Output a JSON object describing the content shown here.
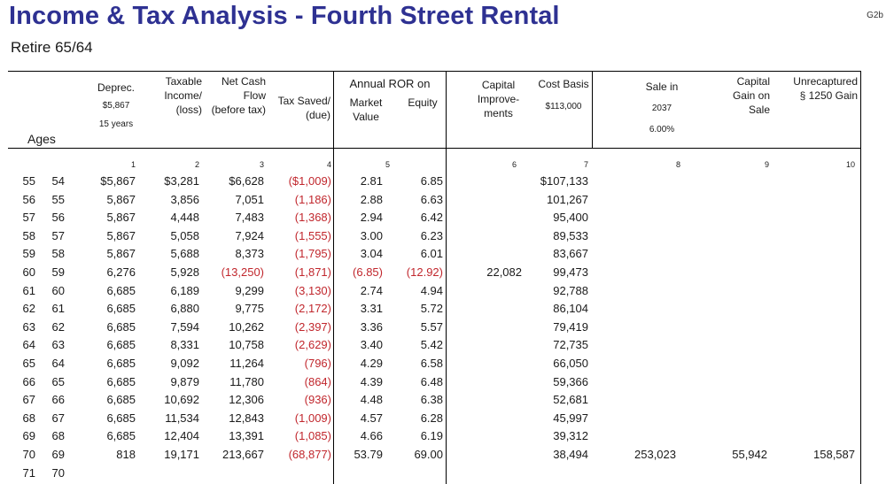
{
  "page": {
    "title": "Income & Tax Analysis - Fourth Street Rental",
    "subtitle": "Retire 65/64",
    "page_id": "G2b"
  },
  "headers": {
    "ages": "Ages",
    "deprec": "Deprec.",
    "deprec_amount": "$5,867",
    "deprec_years": "15 years",
    "taxable_l1": "Taxable",
    "taxable_l2": "Income/",
    "taxable_l3": "(loss)",
    "netcash_l1": "Net Cash",
    "netcash_l2": "Flow",
    "netcash_l3": "(before tax)",
    "taxsaved_l1": "Tax Saved/",
    "taxsaved_l2": "(due)",
    "ror_title": "Annual ROR on",
    "market_l1": "Market",
    "market_l2": "Value",
    "equity": "Equity",
    "capimp_l1": "Capital",
    "capimp_l2": "Improve-",
    "capimp_l3": "ments",
    "costbasis": "Cost Basis",
    "costbasis_amount": "$113,000",
    "sale_l1": "Sale in",
    "sale_year": "2037",
    "sale_rate": "6.00%",
    "capgain_l1": "Capital",
    "capgain_l2": "Gain on",
    "capgain_l3": "Sale",
    "unrecap_l1": "Unrecaptured",
    "unrecap_l2": "§ 1250 Gain"
  },
  "col_numbers": [
    "1",
    "2",
    "3",
    "4",
    "5",
    "6",
    "7",
    "8",
    "9",
    "10"
  ],
  "rows": [
    {
      "age1": "55",
      "age2": "54",
      "deprec": "$5,867",
      "taxable": "$3,281",
      "netcash": "$6,628",
      "taxsaved": "($1,009)",
      "market": "2.81",
      "equity": "6.85",
      "capimp": "",
      "costbasis": "$107,133",
      "sale": "",
      "capgain": "",
      "unrecap": ""
    },
    {
      "age1": "56",
      "age2": "55",
      "deprec": "5,867",
      "taxable": "3,856",
      "netcash": "7,051",
      "taxsaved": "(1,186)",
      "market": "2.88",
      "equity": "6.63",
      "capimp": "",
      "costbasis": "101,267",
      "sale": "",
      "capgain": "",
      "unrecap": ""
    },
    {
      "age1": "57",
      "age2": "56",
      "deprec": "5,867",
      "taxable": "4,448",
      "netcash": "7,483",
      "taxsaved": "(1,368)",
      "market": "2.94",
      "equity": "6.42",
      "capimp": "",
      "costbasis": "95,400",
      "sale": "",
      "capgain": "",
      "unrecap": ""
    },
    {
      "age1": "58",
      "age2": "57",
      "deprec": "5,867",
      "taxable": "5,058",
      "netcash": "7,924",
      "taxsaved": "(1,555)",
      "market": "3.00",
      "equity": "6.23",
      "capimp": "",
      "costbasis": "89,533",
      "sale": "",
      "capgain": "",
      "unrecap": ""
    },
    {
      "age1": "59",
      "age2": "58",
      "deprec": "5,867",
      "taxable": "5,688",
      "netcash": "8,373",
      "taxsaved": "(1,795)",
      "market": "3.04",
      "equity": "6.01",
      "capimp": "",
      "costbasis": "83,667",
      "sale": "",
      "capgain": "",
      "unrecap": ""
    },
    {
      "age1": "60",
      "age2": "59",
      "deprec": "6,276",
      "taxable": "5,928",
      "netcash": "(13,250)",
      "taxsaved": "(1,871)",
      "market": "(6.85)",
      "equity": "(12.92)",
      "capimp": "22,082",
      "costbasis": "99,473",
      "sale": "",
      "capgain": "",
      "unrecap": ""
    },
    {
      "age1": "61",
      "age2": "60",
      "deprec": "6,685",
      "taxable": "6,189",
      "netcash": "9,299",
      "taxsaved": "(3,130)",
      "market": "2.74",
      "equity": "4.94",
      "capimp": "",
      "costbasis": "92,788",
      "sale": "",
      "capgain": "",
      "unrecap": ""
    },
    {
      "age1": "62",
      "age2": "61",
      "deprec": "6,685",
      "taxable": "6,880",
      "netcash": "9,775",
      "taxsaved": "(2,172)",
      "market": "3.31",
      "equity": "5.72",
      "capimp": "",
      "costbasis": "86,104",
      "sale": "",
      "capgain": "",
      "unrecap": ""
    },
    {
      "age1": "63",
      "age2": "62",
      "deprec": "6,685",
      "taxable": "7,594",
      "netcash": "10,262",
      "taxsaved": "(2,397)",
      "market": "3.36",
      "equity": "5.57",
      "capimp": "",
      "costbasis": "79,419",
      "sale": "",
      "capgain": "",
      "unrecap": ""
    },
    {
      "age1": "64",
      "age2": "63",
      "deprec": "6,685",
      "taxable": "8,331",
      "netcash": "10,758",
      "taxsaved": "(2,629)",
      "market": "3.40",
      "equity": "5.42",
      "capimp": "",
      "costbasis": "72,735",
      "sale": "",
      "capgain": "",
      "unrecap": ""
    },
    {
      "age1": "65",
      "age2": "64",
      "deprec": "6,685",
      "taxable": "9,092",
      "netcash": "11,264",
      "taxsaved": "(796)",
      "market": "4.29",
      "equity": "6.58",
      "capimp": "",
      "costbasis": "66,050",
      "sale": "",
      "capgain": "",
      "unrecap": ""
    },
    {
      "age1": "66",
      "age2": "65",
      "deprec": "6,685",
      "taxable": "9,879",
      "netcash": "11,780",
      "taxsaved": "(864)",
      "market": "4.39",
      "equity": "6.48",
      "capimp": "",
      "costbasis": "59,366",
      "sale": "",
      "capgain": "",
      "unrecap": ""
    },
    {
      "age1": "67",
      "age2": "66",
      "deprec": "6,685",
      "taxable": "10,692",
      "netcash": "12,306",
      "taxsaved": "(936)",
      "market": "4.48",
      "equity": "6.38",
      "capimp": "",
      "costbasis": "52,681",
      "sale": "",
      "capgain": "",
      "unrecap": ""
    },
    {
      "age1": "68",
      "age2": "67",
      "deprec": "6,685",
      "taxable": "11,534",
      "netcash": "12,843",
      "taxsaved": "(1,009)",
      "market": "4.57",
      "equity": "6.28",
      "capimp": "",
      "costbasis": "45,997",
      "sale": "",
      "capgain": "",
      "unrecap": ""
    },
    {
      "age1": "69",
      "age2": "68",
      "deprec": "6,685",
      "taxable": "12,404",
      "netcash": "13,391",
      "taxsaved": "(1,085)",
      "market": "4.66",
      "equity": "6.19",
      "capimp": "",
      "costbasis": "39,312",
      "sale": "",
      "capgain": "",
      "unrecap": ""
    },
    {
      "age1": "70",
      "age2": "69",
      "deprec": "818",
      "taxable": "19,171",
      "netcash": "213,667",
      "taxsaved": "(68,877)",
      "market": "53.79",
      "equity": "69.00",
      "capimp": "",
      "costbasis": "38,494",
      "sale": "253,023",
      "capgain": "55,942",
      "unrecap": "158,587"
    },
    {
      "age1": "71",
      "age2": "70",
      "deprec": "",
      "taxable": "",
      "netcash": "",
      "taxsaved": "",
      "market": "",
      "equity": "",
      "capimp": "",
      "costbasis": "",
      "sale": "",
      "capgain": "",
      "unrecap": ""
    }
  ],
  "colors": {
    "title": "#2e3192",
    "negative": "#c1272d"
  }
}
